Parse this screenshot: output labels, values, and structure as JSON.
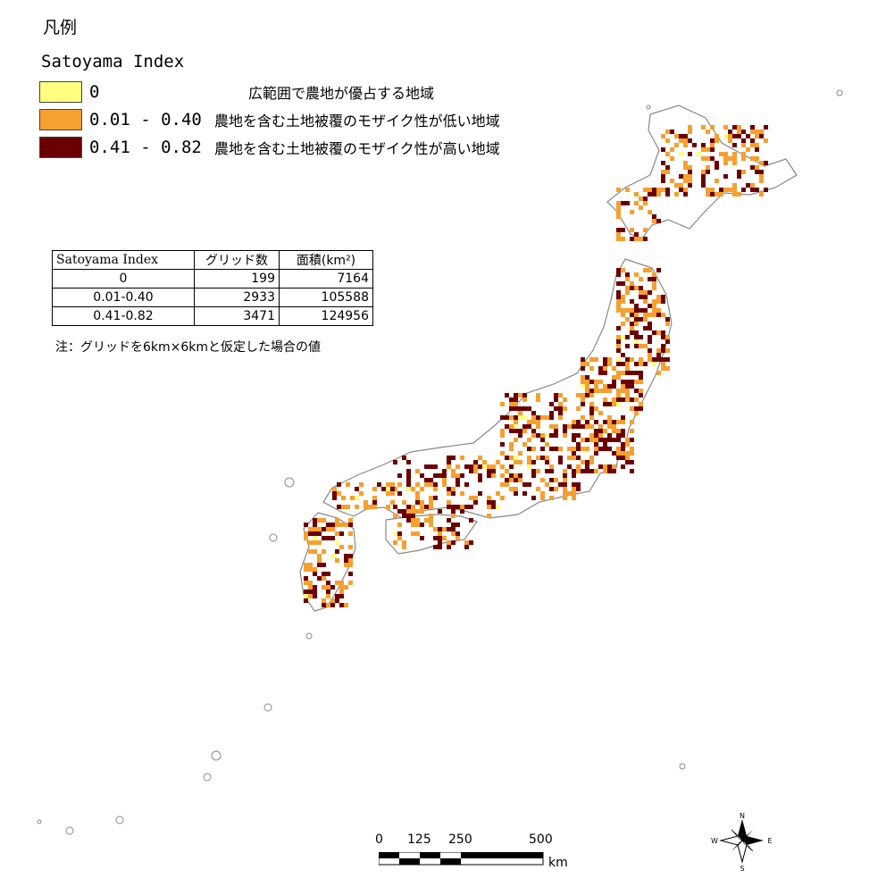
{
  "legend": {
    "title": "凡例",
    "subtitle": "Satoyama Index",
    "items": [
      {
        "range": "0",
        "desc": "広範囲で農地が優占する地域",
        "color": "#ffff80"
      },
      {
        "range": "0.01 - 0.40",
        "desc": "農地を含む土地被覆のモザイク性が低い地域",
        "color": "#f5a030"
      },
      {
        "range": "0.41 - 0.82",
        "desc": "農地を含む土地被覆のモザイク性が高い地域",
        "color": "#6b0000"
      }
    ]
  },
  "table": {
    "headers": [
      "Satoyama Index",
      "グリッド数",
      "面積(km²)"
    ],
    "rows": [
      [
        "0",
        "199",
        "7164"
      ],
      [
        "0.01-0.40",
        "2933",
        "105588"
      ],
      [
        "0.41-0.82",
        "3471",
        "124956"
      ]
    ],
    "note": "注：グリッドを6km×6kmと仮定した場合の値"
  },
  "scale_bar": {
    "ticks": [
      "0",
      "125",
      "250",
      "500"
    ],
    "unit": "km"
  },
  "compass": {
    "n": "N",
    "s": "S",
    "e": "E",
    "w": "W"
  },
  "colors": {
    "outline": "#888888",
    "low": "#f5a030",
    "high": "#6b0000",
    "zero": "#ffff80"
  }
}
